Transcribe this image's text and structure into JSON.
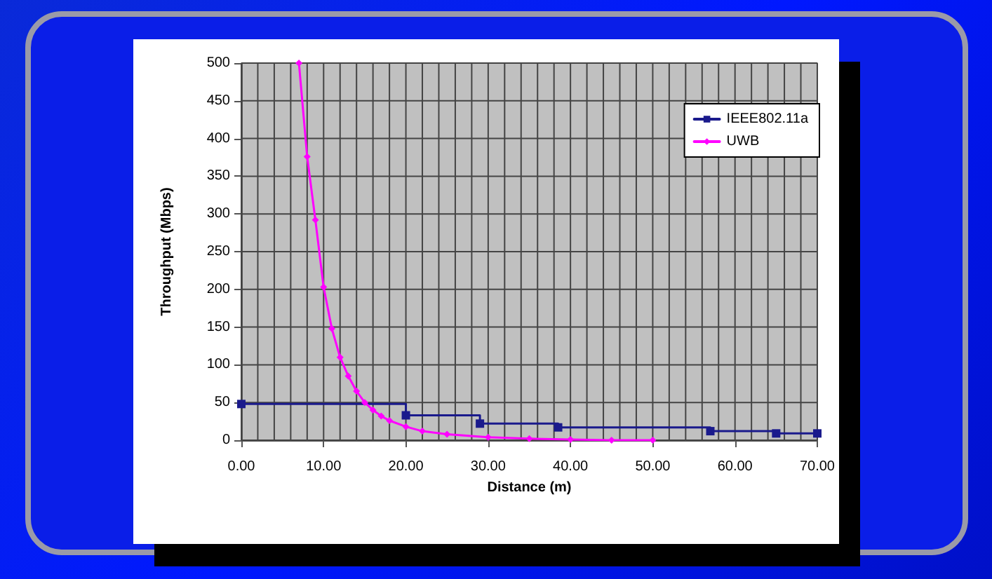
{
  "chart_data": {
    "type": "line",
    "xlabel": "Distance (m)",
    "ylabel": "Throughput (Mbps)",
    "xlim": [
      0,
      70
    ],
    "ylim": [
      0,
      500
    ],
    "xticks": [
      {
        "value": 0,
        "label": "0.00"
      },
      {
        "value": 2,
        "label": null
      },
      {
        "value": 4,
        "label": null
      },
      {
        "value": 6,
        "label": null
      },
      {
        "value": 8,
        "label": null
      },
      {
        "value": 10,
        "label": "10.00"
      },
      {
        "value": 12,
        "label": null
      },
      {
        "value": 14,
        "label": null
      },
      {
        "value": 16,
        "label": null
      },
      {
        "value": 18,
        "label": null
      },
      {
        "value": 20,
        "label": "20.00"
      },
      {
        "value": 22,
        "label": null
      },
      {
        "value": 24,
        "label": null
      },
      {
        "value": 26,
        "label": null
      },
      {
        "value": 28,
        "label": null
      },
      {
        "value": 30,
        "label": "30.00"
      },
      {
        "value": 32,
        "label": null
      },
      {
        "value": 34,
        "label": null
      },
      {
        "value": 36,
        "label": null
      },
      {
        "value": 38,
        "label": null
      },
      {
        "value": 40,
        "label": "40.00"
      },
      {
        "value": 42,
        "label": null
      },
      {
        "value": 44,
        "label": null
      },
      {
        "value": 46,
        "label": null
      },
      {
        "value": 48,
        "label": null
      },
      {
        "value": 50,
        "label": "50.00"
      },
      {
        "value": 52,
        "label": null
      },
      {
        "value": 54,
        "label": null
      },
      {
        "value": 56,
        "label": null
      },
      {
        "value": 58,
        "label": null
      },
      {
        "value": 60,
        "label": "60.00"
      },
      {
        "value": 62,
        "label": null
      },
      {
        "value": 64,
        "label": null
      },
      {
        "value": 66,
        "label": null
      },
      {
        "value": 68,
        "label": null
      },
      {
        "value": 70,
        "label": "70.00"
      }
    ],
    "yticks": [
      0,
      50,
      100,
      150,
      200,
      250,
      300,
      350,
      400,
      450,
      500
    ],
    "grid": true,
    "legend": "top right",
    "line_style": "solid",
    "series": [
      {
        "name": "IEEE802.11a",
        "type": "step",
        "color": "#1a1a8c",
        "marker": "square",
        "x": [
          0,
          20,
          29,
          38.5,
          57,
          65,
          70
        ],
        "values": [
          48,
          33,
          22,
          17,
          12,
          9,
          9
        ]
      },
      {
        "name": "UWB",
        "color": "#ff00ff",
        "marker": "diamond",
        "x": [
          7,
          8,
          9,
          10,
          11,
          12,
          13,
          14,
          15,
          16,
          17,
          18,
          20,
          22,
          25,
          30,
          35,
          40,
          45,
          50
        ],
        "values": [
          500,
          376,
          292,
          203,
          148,
          110,
          85,
          65,
          50,
          40,
          32,
          26,
          18,
          12,
          8,
          4,
          2,
          1,
          0,
          0
        ]
      }
    ]
  }
}
